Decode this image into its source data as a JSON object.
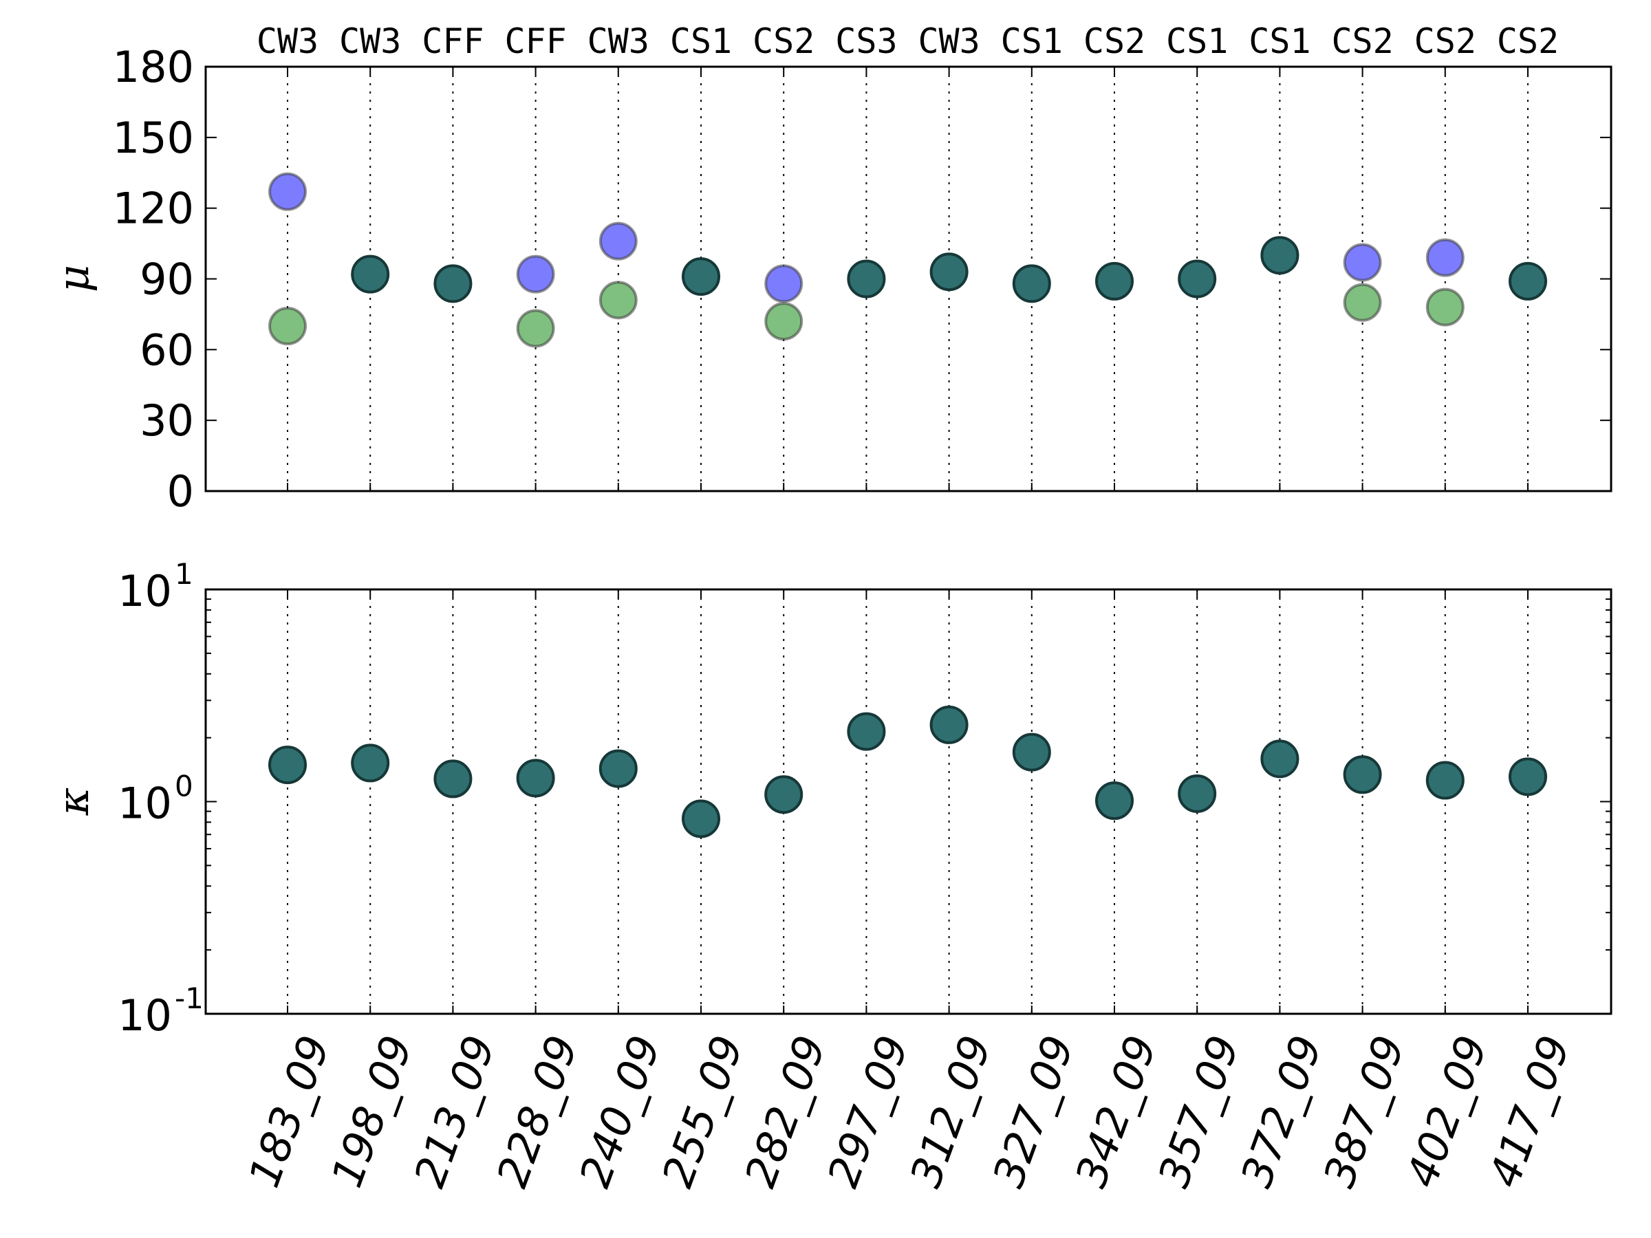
{
  "chart_data": [
    {
      "type": "scatter",
      "ylabel": "μ",
      "ylim": [
        0,
        180
      ],
      "yticks": [
        0,
        30,
        60,
        90,
        120,
        150,
        180
      ],
      "ytick_labels": [
        "0",
        "30",
        "60",
        "90",
        "120",
        "150",
        "180"
      ],
      "grid": "vertical-dotted",
      "top_labels": [
        "CW3",
        "CW3",
        "CFF",
        "CFF",
        "CW3",
        "CS1",
        "CS2",
        "CS3",
        "CW3",
        "CS1",
        "CS2",
        "CS1",
        "CS1",
        "CS2",
        "CS2",
        "CS2"
      ],
      "categories": [
        "183_09",
        "198_09",
        "213_09",
        "228_09",
        "240_09",
        "255_09",
        "282_09",
        "297_09",
        "312_09",
        "327_09",
        "342_09",
        "357_09",
        "372_09",
        "387_09",
        "402_09",
        "417_09"
      ],
      "series": [
        {
          "color": "#2f6f6f",
          "values": [
            null,
            92,
            88,
            null,
            null,
            91,
            null,
            90,
            93,
            88,
            89,
            90,
            100,
            null,
            null,
            89
          ]
        },
        {
          "color": "#7c7cff",
          "values": [
            127,
            null,
            null,
            92,
            106,
            null,
            88,
            null,
            null,
            null,
            null,
            null,
            null,
            97,
            99,
            null
          ]
        },
        {
          "color": "#7fbf7f",
          "values": [
            70,
            null,
            null,
            69,
            81,
            null,
            72,
            null,
            null,
            null,
            null,
            null,
            null,
            80,
            78,
            null
          ]
        }
      ]
    },
    {
      "type": "scatter",
      "ylabel": "κ",
      "yscale": "log",
      "ylim": [
        0.1,
        10
      ],
      "yticks": [
        0.1,
        1,
        10
      ],
      "ytick_labels": [
        {
          "base": "10",
          "exp": "-1"
        },
        {
          "base": "10",
          "exp": "0"
        },
        {
          "base": "10",
          "exp": "1"
        }
      ],
      "grid": "vertical-dotted",
      "categories": [
        "183_09",
        "198_09",
        "213_09",
        "228_09",
        "240_09",
        "255_09",
        "282_09",
        "297_09",
        "312_09",
        "327_09",
        "342_09",
        "357_09",
        "372_09",
        "387_09",
        "402_09",
        "417_09"
      ],
      "series": [
        {
          "color": "#2f6f6f",
          "values": [
            1.49,
            1.52,
            1.28,
            1.29,
            1.43,
            0.83,
            1.08,
            2.14,
            2.3,
            1.71,
            1.01,
            1.09,
            1.59,
            1.34,
            1.26,
            1.31
          ]
        }
      ]
    }
  ]
}
